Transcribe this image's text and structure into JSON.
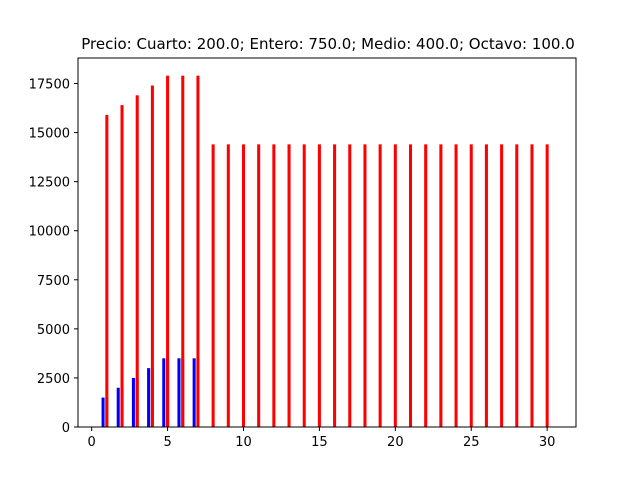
{
  "chart_data": {
    "type": "bar",
    "title": "Precio: Cuarto: 200.0; Entero: 750.0; Medio: 400.0; Octavo: 100.0",
    "xlabel": "",
    "ylabel": "",
    "xlim": [
      -0.9,
      31.9
    ],
    "ylim": [
      0,
      18800
    ],
    "xticks": [
      0,
      5,
      10,
      15,
      20,
      25,
      30
    ],
    "xtick_labels": [
      "0",
      "5",
      "10",
      "15",
      "20",
      "25",
      "30"
    ],
    "yticks": [
      0,
      2500,
      5000,
      7500,
      10000,
      12500,
      15000,
      17500
    ],
    "ytick_labels": [
      "0",
      "2500",
      "5000",
      "7500",
      "10000",
      "12500",
      "15000",
      "17500"
    ],
    "grid": false,
    "legend": "none",
    "bar_width": 0.2,
    "series": [
      {
        "color": "#0000ff",
        "offset": -0.25,
        "x": [
          1,
          2,
          3,
          4,
          5,
          6,
          7
        ],
        "values": [
          1500,
          2000,
          2500,
          3000,
          3500,
          3500,
          3500
        ]
      },
      {
        "color": "#556b2f",
        "offset": 0.0,
        "x": [
          1,
          2,
          3,
          4,
          5,
          6,
          7
        ],
        "values": [
          1500,
          2000,
          2500,
          3000,
          3500,
          3500,
          3500
        ]
      },
      {
        "color": "#ff0000",
        "offset": 0.0,
        "x": [
          1,
          2,
          3,
          4,
          5,
          6,
          7,
          8,
          9,
          10,
          11,
          12,
          13,
          14,
          15,
          16,
          17,
          18,
          19,
          20,
          21,
          22,
          23,
          24,
          25,
          26,
          27,
          28,
          29,
          30
        ],
        "values": [
          15900,
          16400,
          16900,
          17400,
          17900,
          17900,
          17900,
          14400,
          14400,
          14400,
          14400,
          14400,
          14400,
          14400,
          14400,
          14400,
          14400,
          14400,
          14400,
          14400,
          14400,
          14400,
          14400,
          14400,
          14400,
          14400,
          14400,
          14400,
          14400,
          14400
        ]
      }
    ]
  }
}
